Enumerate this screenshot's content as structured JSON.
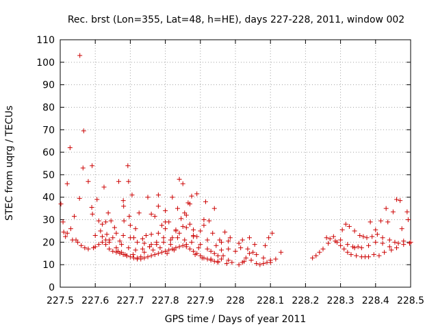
{
  "chart_data": {
    "type": "scatter",
    "title": "Rec. brst (Lon=355, Lat=48, h=HE), days 227-228, 2011, window 002",
    "xlabel": "GPS time / Days of year 2011",
    "ylabel": "STEC from uqrg / TECUs",
    "xlim": [
      227.5,
      228.5
    ],
    "ylim": [
      0,
      110
    ],
    "xticks": [
      227.5,
      227.6,
      227.7,
      227.8,
      227.9,
      228.0,
      228.1,
      228.2,
      228.3,
      228.4,
      228.5
    ],
    "xtick_labels": [
      "227.5",
      "227.6",
      "227.7",
      "227.8",
      "227.9",
      "228",
      "228.1",
      "228.2",
      "228.3",
      "228.4",
      "228.5"
    ],
    "yticks": [
      0,
      10,
      20,
      30,
      40,
      50,
      60,
      70,
      80,
      90,
      100,
      110
    ],
    "ytick_labels": [
      "0",
      "10",
      "20",
      "30",
      "40",
      "50",
      "60",
      "70",
      "80",
      "90",
      "100",
      "110"
    ],
    "grid": true,
    "marker": "+",
    "marker_color": "#cc0000",
    "points": [
      [
        227.502,
        37.0
      ],
      [
        227.508,
        29.0
      ],
      [
        227.515,
        22.5
      ],
      [
        227.51,
        24.5
      ],
      [
        227.52,
        46.0
      ],
      [
        227.53,
        26.0
      ],
      [
        227.528,
        62.0
      ],
      [
        227.54,
        31.5
      ],
      [
        227.545,
        21.0
      ],
      [
        227.556,
        103.0
      ],
      [
        227.555,
        39.5
      ],
      [
        227.567,
        69.5
      ],
      [
        227.565,
        53.0
      ],
      [
        227.58,
        47.0
      ],
      [
        227.591,
        54.0
      ],
      [
        227.59,
        35.5
      ],
      [
        227.592,
        32.5
      ],
      [
        227.595,
        17.5
      ],
      [
        227.6,
        18.0
      ],
      [
        227.605,
        39.0
      ],
      [
        227.61,
        19.0
      ],
      [
        227.615,
        25.0
      ],
      [
        227.62,
        28.0
      ],
      [
        227.625,
        44.5
      ],
      [
        227.63,
        21.0
      ],
      [
        227.633,
        23.5
      ],
      [
        227.637,
        33.0
      ],
      [
        227.64,
        20.0
      ],
      [
        227.645,
        29.5
      ],
      [
        227.65,
        22.0
      ],
      [
        227.655,
        26.5
      ],
      [
        227.66,
        17.5
      ],
      [
        227.665,
        16.0
      ],
      [
        227.667,
        47.0
      ],
      [
        227.67,
        20.5
      ],
      [
        227.675,
        15.5
      ],
      [
        227.68,
        38.5
      ],
      [
        227.681,
        36.0
      ],
      [
        227.682,
        29.5
      ],
      [
        227.685,
        14.5
      ],
      [
        227.69,
        14.0
      ],
      [
        227.693,
        54.0
      ],
      [
        227.695,
        47.0
      ],
      [
        227.697,
        31.5
      ],
      [
        227.7,
        27.5
      ],
      [
        227.705,
        41.0
      ],
      [
        227.708,
        14.5
      ],
      [
        227.71,
        22.0
      ],
      [
        227.715,
        26.0
      ],
      [
        227.72,
        13.0
      ],
      [
        227.725,
        33.0
      ],
      [
        227.73,
        13.5
      ],
      [
        227.735,
        21.5
      ],
      [
        227.74,
        15.5
      ],
      [
        227.745,
        23.0
      ],
      [
        227.75,
        40.0
      ],
      [
        227.755,
        18.0
      ],
      [
        227.76,
        23.5
      ],
      [
        227.765,
        16.5
      ],
      [
        227.77,
        31.5
      ],
      [
        227.775,
        20.0
      ],
      [
        227.78,
        41.0
      ],
      [
        227.785,
        17.5
      ],
      [
        227.79,
        27.5
      ],
      [
        227.795,
        22.0
      ],
      [
        227.8,
        34.0
      ],
      [
        227.805,
        15.0
      ],
      [
        227.81,
        29.0
      ],
      [
        227.815,
        19.0
      ],
      [
        227.82,
        40.0
      ],
      [
        227.825,
        16.5
      ],
      [
        227.83,
        25.0
      ],
      [
        227.835,
        35.0
      ],
      [
        227.84,
        48.0
      ],
      [
        227.845,
        30.5
      ],
      [
        227.85,
        46.0
      ],
      [
        227.855,
        33.0
      ],
      [
        227.86,
        19.0
      ],
      [
        227.865,
        37.5
      ],
      [
        227.87,
        28.0
      ],
      [
        227.875,
        40.5
      ],
      [
        227.88,
        22.5
      ],
      [
        227.885,
        14.5
      ],
      [
        227.89,
        41.5
      ],
      [
        227.895,
        17.5
      ],
      [
        227.9,
        25.0
      ],
      [
        227.905,
        13.0
      ],
      [
        227.91,
        27.5
      ],
      [
        227.915,
        38.0
      ],
      [
        227.92,
        21.0
      ],
      [
        227.925,
        29.5
      ],
      [
        227.93,
        12.5
      ],
      [
        227.935,
        24.0
      ],
      [
        227.94,
        35.0
      ],
      [
        227.945,
        18.5
      ],
      [
        227.95,
        11.5
      ],
      [
        227.955,
        21.0
      ],
      [
        227.96,
        16.5
      ],
      [
        227.965,
        14.0
      ],
      [
        227.97,
        24.5
      ],
      [
        227.975,
        10.5
      ],
      [
        227.98,
        20.5
      ],
      [
        227.985,
        22.0
      ],
      [
        227.99,
        11.0
      ],
      [
        228.01,
        10.0
      ],
      [
        228.015,
        17.5
      ],
      [
        228.02,
        21.0
      ],
      [
        228.025,
        11.5
      ],
      [
        228.03,
        13.0
      ],
      [
        228.035,
        17.0
      ],
      [
        228.04,
        22.0
      ],
      [
        228.045,
        12.0
      ],
      [
        228.05,
        15.5
      ],
      [
        228.055,
        19.0
      ],
      [
        228.06,
        10.5
      ],
      [
        228.07,
        10.0
      ],
      [
        228.08,
        10.5
      ],
      [
        228.085,
        18.5
      ],
      [
        228.09,
        11.0
      ],
      [
        228.095,
        22.0
      ],
      [
        228.1,
        12.0
      ],
      [
        228.105,
        24.0
      ],
      [
        228.115,
        12.5
      ],
      [
        228.13,
        15.5
      ],
      [
        228.22,
        13.0
      ],
      [
        228.23,
        14.0
      ],
      [
        228.24,
        15.5
      ],
      [
        228.25,
        17.0
      ],
      [
        228.26,
        22.0
      ],
      [
        228.265,
        19.5
      ],
      [
        228.27,
        21.5
      ],
      [
        228.28,
        22.5
      ],
      [
        228.285,
        20.5
      ],
      [
        228.29,
        20.0
      ],
      [
        228.3,
        18.5
      ],
      [
        228.305,
        25.5
      ],
      [
        228.31,
        17.0
      ],
      [
        228.315,
        28.0
      ],
      [
        228.32,
        15.5
      ],
      [
        228.325,
        27.0
      ],
      [
        228.33,
        14.5
      ],
      [
        228.335,
        18.0
      ],
      [
        228.34,
        25.0
      ],
      [
        228.345,
        14.0
      ],
      [
        228.35,
        18.0
      ],
      [
        228.355,
        23.0
      ],
      [
        228.36,
        13.5
      ],
      [
        228.365,
        22.5
      ],
      [
        228.37,
        13.5
      ],
      [
        228.375,
        22.0
      ],
      [
        228.38,
        13.5
      ],
      [
        228.385,
        29.0
      ],
      [
        228.39,
        22.5
      ],
      [
        228.395,
        14.5
      ],
      [
        228.4,
        25.5
      ],
      [
        228.405,
        23.5
      ],
      [
        228.41,
        14.0
      ],
      [
        228.415,
        29.5
      ],
      [
        228.42,
        22.0
      ],
      [
        228.425,
        15.5
      ],
      [
        228.43,
        35.0
      ],
      [
        228.435,
        29.0
      ],
      [
        228.44,
        21.0
      ],
      [
        228.445,
        16.5
      ],
      [
        228.45,
        33.5
      ],
      [
        228.455,
        20.0
      ],
      [
        228.46,
        39.0
      ],
      [
        228.465,
        19.5
      ],
      [
        228.47,
        38.5
      ],
      [
        228.475,
        26.0
      ],
      [
        228.48,
        19.0
      ],
      [
        228.49,
        33.5
      ],
      [
        228.493,
        30.0
      ],
      [
        228.497,
        19.5
      ],
      [
        227.52,
        24.0
      ],
      [
        227.535,
        21.0
      ],
      [
        227.55,
        20.0
      ],
      [
        227.56,
        18.5
      ],
      [
        227.57,
        17.5
      ],
      [
        227.58,
        17.0
      ],
      [
        227.62,
        20.0
      ],
      [
        227.63,
        19.0
      ],
      [
        227.64,
        17.0
      ],
      [
        227.65,
        16.0
      ],
      [
        227.66,
        15.5
      ],
      [
        227.67,
        15.0
      ],
      [
        227.68,
        14.5
      ],
      [
        227.69,
        14.0
      ],
      [
        227.7,
        13.5
      ],
      [
        227.71,
        13.0
      ],
      [
        227.72,
        12.5
      ],
      [
        227.73,
        12.5
      ],
      [
        227.74,
        13.0
      ],
      [
        227.75,
        13.5
      ],
      [
        227.76,
        14.0
      ],
      [
        227.77,
        14.5
      ],
      [
        227.78,
        15.0
      ],
      [
        227.79,
        15.5
      ],
      [
        227.8,
        16.0
      ],
      [
        227.81,
        16.5
      ],
      [
        227.82,
        17.0
      ],
      [
        227.83,
        17.5
      ],
      [
        227.84,
        18.0
      ],
      [
        227.85,
        18.5
      ],
      [
        227.86,
        18.0
      ],
      [
        227.87,
        17.0
      ],
      [
        227.88,
        16.0
      ],
      [
        227.89,
        15.0
      ],
      [
        227.9,
        14.0
      ],
      [
        227.91,
        13.0
      ],
      [
        227.92,
        12.5
      ],
      [
        227.93,
        12.0
      ],
      [
        227.94,
        11.5
      ],
      [
        227.95,
        11.0
      ],
      [
        227.675,
        19.0
      ],
      [
        227.695,
        17.5
      ],
      [
        227.715,
        16.5
      ],
      [
        227.735,
        17.0
      ],
      [
        227.755,
        18.0
      ],
      [
        227.775,
        19.0
      ],
      [
        227.795,
        20.0
      ],
      [
        227.815,
        21.0
      ],
      [
        227.835,
        22.0
      ],
      [
        227.855,
        21.0
      ],
      [
        227.875,
        20.0
      ],
      [
        227.72,
        20.0
      ],
      [
        227.74,
        19.5
      ],
      [
        227.76,
        19.0
      ],
      [
        227.78,
        24.0
      ],
      [
        227.8,
        26.0
      ],
      [
        227.82,
        22.0
      ],
      [
        227.84,
        24.0
      ],
      [
        227.86,
        26.5
      ],
      [
        227.88,
        23.0
      ],
      [
        227.9,
        19.0
      ],
      [
        227.92,
        17.0
      ],
      [
        227.94,
        15.0
      ],
      [
        227.96,
        12.5
      ],
      [
        227.98,
        12.0
      ],
      [
        228.0,
        16.0
      ],
      [
        228.01,
        19.5
      ],
      [
        227.98,
        17.0
      ],
      [
        227.96,
        20.0
      ],
      [
        227.7,
        22.0
      ],
      [
        227.68,
        23.0
      ],
      [
        227.66,
        24.0
      ],
      [
        227.64,
        21.0
      ],
      [
        227.62,
        22.5
      ],
      [
        227.6,
        23.0
      ],
      [
        227.63,
        29.0
      ],
      [
        227.61,
        29.5
      ],
      [
        227.8,
        29.0
      ],
      [
        227.78,
        36.0
      ],
      [
        227.76,
        32.5
      ],
      [
        227.86,
        32.0
      ],
      [
        227.88,
        25.5
      ],
      [
        227.91,
        30.0
      ],
      [
        227.83,
        25.5
      ],
      [
        227.85,
        27.0
      ],
      [
        227.87,
        37.0
      ],
      [
        227.89,
        22.5
      ],
      [
        227.93,
        16.0
      ],
      [
        227.95,
        14.0
      ],
      [
        228.02,
        11.0
      ],
      [
        228.04,
        15.0
      ],
      [
        228.06,
        14.5
      ],
      [
        228.08,
        13.0
      ],
      [
        228.1,
        11.0
      ],
      [
        228.3,
        21.0
      ],
      [
        228.32,
        19.0
      ],
      [
        228.34,
        17.5
      ],
      [
        228.36,
        17.5
      ],
      [
        228.38,
        18.5
      ],
      [
        228.4,
        20.0
      ],
      [
        228.42,
        19.5
      ],
      [
        228.44,
        18.0
      ],
      [
        228.46,
        17.5
      ],
      [
        228.48,
        20.5
      ],
      [
        228.5,
        20.0
      ]
    ]
  }
}
